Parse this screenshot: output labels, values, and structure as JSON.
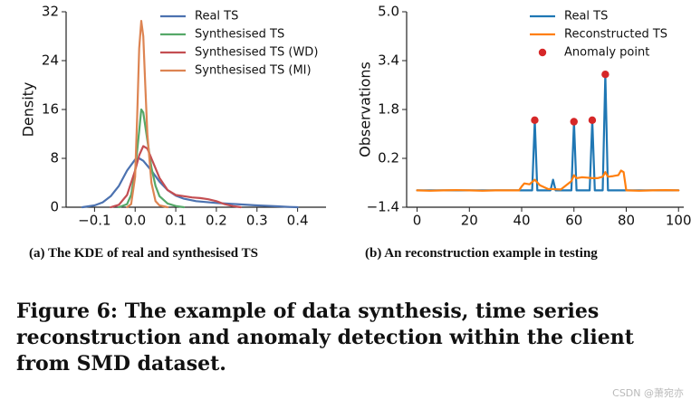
{
  "figure": {
    "caption": "Figure 6: The example of data synthesis, time series reconstruction and anomaly detection within the client from SMD dataset.",
    "watermark": "CSDN @萧宛亦"
  },
  "colors": {
    "real": "#4c72b0",
    "synth": "#55a868",
    "wd": "#c44e52",
    "mi": "#dd8452",
    "obs": "#1f77b4",
    "recon": "#ff7f0e",
    "anomaly": "#d62728"
  },
  "chart_data": [
    {
      "type": "line",
      "subtitle": "(a) The KDE of real and synthesised TS",
      "xlabel": "",
      "ylabel": "Density",
      "xlim": [
        -0.17,
        0.47
      ],
      "ylim": [
        0,
        32
      ],
      "xticks": [
        -0.1,
        0.0,
        0.1,
        0.2,
        0.3,
        0.4
      ],
      "xtick_labels": [
        "−0.1",
        "0.0",
        "0.1",
        "0.2",
        "0.3",
        "0.4"
      ],
      "yticks": [
        0,
        8,
        16,
        24,
        32
      ],
      "ytick_labels": [
        "0",
        "8",
        "16",
        "24",
        "32"
      ],
      "legend": "top-right",
      "series": [
        {
          "name": "Real TS",
          "color_key": "real",
          "x": [
            -0.13,
            -0.1,
            -0.08,
            -0.06,
            -0.04,
            -0.02,
            0.0,
            0.01,
            0.02,
            0.04,
            0.06,
            0.08,
            0.1,
            0.12,
            0.15,
            0.2,
            0.25,
            0.3,
            0.35,
            0.38,
            0.4
          ],
          "y": [
            0,
            0.3,
            0.8,
            1.8,
            3.5,
            6.0,
            7.8,
            8.0,
            7.6,
            6.0,
            4.2,
            2.8,
            1.9,
            1.4,
            1.0,
            0.7,
            0.5,
            0.3,
            0.15,
            0.05,
            0
          ]
        },
        {
          "name": "Synthesised TS",
          "color_key": "synth",
          "x": [
            -0.04,
            -0.02,
            -0.01,
            0.0,
            0.01,
            0.015,
            0.02,
            0.03,
            0.04,
            0.05,
            0.06,
            0.08,
            0.1,
            0.12
          ],
          "y": [
            0,
            0.5,
            2.0,
            6.0,
            12.5,
            16.0,
            15.5,
            11.0,
            6.5,
            3.5,
            1.8,
            0.6,
            0.2,
            0
          ]
        },
        {
          "name": "Synthesised TS (WD)",
          "color_key": "wd",
          "x": [
            -0.06,
            -0.04,
            -0.02,
            0.0,
            0.01,
            0.02,
            0.03,
            0.04,
            0.06,
            0.08,
            0.1,
            0.12,
            0.14,
            0.16,
            0.18,
            0.2,
            0.22,
            0.24,
            0.26
          ],
          "y": [
            0,
            0.4,
            2.0,
            6.0,
            8.5,
            10.0,
            9.6,
            8.0,
            4.8,
            2.8,
            2.0,
            1.8,
            1.6,
            1.5,
            1.3,
            1.0,
            0.5,
            0.2,
            0
          ]
        },
        {
          "name": "Synthesised TS (MI)",
          "color_key": "mi",
          "x": [
            -0.02,
            -0.01,
            0.0,
            0.005,
            0.01,
            0.015,
            0.02,
            0.025,
            0.03,
            0.04,
            0.05,
            0.06,
            0.08
          ],
          "y": [
            0,
            0.5,
            5.0,
            15.0,
            26.0,
            30.5,
            28.0,
            20.0,
            12.0,
            4.0,
            1.0,
            0.3,
            0
          ]
        }
      ]
    },
    {
      "type": "line",
      "subtitle": "(b) An reconstruction example in testing",
      "xlabel": "",
      "ylabel": "Observations",
      "xlim": [
        -4,
        102
      ],
      "ylim": [
        -1.4,
        5.0
      ],
      "xticks": [
        0,
        20,
        40,
        60,
        80,
        100
      ],
      "xtick_labels": [
        "0",
        "20",
        "40",
        "60",
        "80",
        "100"
      ],
      "yticks": [
        -1.4,
        0.2,
        1.8,
        3.4,
        5.0
      ],
      "ytick_labels": [
        "−1.4",
        "0.2",
        "1.8",
        "3.4",
        "5.0"
      ],
      "legend": "top-right",
      "series": [
        {
          "name": "Real TS",
          "color_key": "obs",
          "x": [
            0,
            44,
            45,
            46,
            51,
            52,
            53,
            59,
            60,
            61,
            66,
            67,
            68,
            71,
            72,
            73,
            100
          ],
          "y": [
            -0.85,
            -0.85,
            1.45,
            -0.85,
            -0.85,
            -0.5,
            -0.85,
            -0.85,
            1.4,
            -0.85,
            -0.85,
            1.45,
            -0.85,
            -0.85,
            2.95,
            -0.85,
            -0.85
          ]
        },
        {
          "name": "Reconstructed TS",
          "color_key": "recon",
          "x": [
            0,
            5,
            10,
            15,
            20,
            25,
            30,
            35,
            39,
            40,
            41,
            43,
            45,
            47,
            50,
            55,
            59,
            60,
            61,
            63,
            65,
            67,
            69,
            71,
            72,
            73,
            75,
            77,
            78,
            79,
            80,
            85,
            90,
            95,
            100
          ],
          "y": [
            -0.85,
            -0.86,
            -0.85,
            -0.84,
            -0.85,
            -0.86,
            -0.85,
            -0.85,
            -0.85,
            -0.72,
            -0.62,
            -0.65,
            -0.5,
            -0.68,
            -0.8,
            -0.82,
            -0.55,
            -0.35,
            -0.45,
            -0.42,
            -0.43,
            -0.45,
            -0.45,
            -0.4,
            -0.25,
            -0.4,
            -0.38,
            -0.35,
            -0.2,
            -0.25,
            -0.85,
            -0.86,
            -0.85,
            -0.84,
            -0.85
          ]
        },
        {
          "name": "Anomaly point",
          "color_key": "anomaly",
          "kind": "points",
          "x": [
            45,
            60,
            67,
            72
          ],
          "y": [
            1.45,
            1.4,
            1.45,
            2.95
          ]
        }
      ]
    }
  ]
}
